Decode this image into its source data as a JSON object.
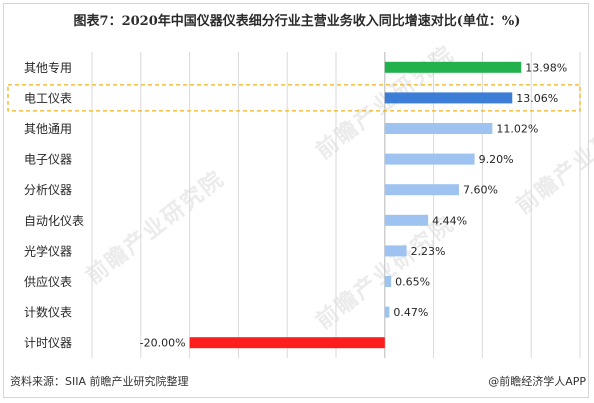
{
  "title": "图表7：2020年中国仪器仪表细分行业主营业务收入同比增速对比(单位：%)",
  "source": "资料来源：SIIA 前瞻产业研究院整理",
  "brand": "@前瞻经济学人APP",
  "watermark": "前瞻产业研究院",
  "colors": {
    "default_bar": "#9ec3f1",
    "highlight_bar": "#3c7dd8",
    "top_bar": "#23b14d",
    "negative_bar": "#ff1e1e",
    "highlight_box": "#f2b21b",
    "grid": "#d9d9d9"
  },
  "chart_data": {
    "type": "bar",
    "orientation": "horizontal",
    "categories": [
      "其他专用",
      "电工仪表",
      "其他通用",
      "电子仪器",
      "分析仪器",
      "自动化仪表",
      "光学仪器",
      "供应仪表",
      "计数仪表",
      "计时仪器"
    ],
    "values": [
      13.98,
      13.06,
      11.02,
      9.2,
      7.6,
      4.44,
      2.23,
      0.65,
      0.47,
      -20.0
    ],
    "data_labels": [
      "13.98%",
      "13.06%",
      "11.02%",
      "9.20%",
      "7.60%",
      "4.44%",
      "2.23%",
      "0.65%",
      "0.47%",
      "-20.00%"
    ],
    "highlighted_category": "电工仪表",
    "xlim": [
      -30,
      20
    ],
    "grid": true,
    "legend": "none"
  }
}
